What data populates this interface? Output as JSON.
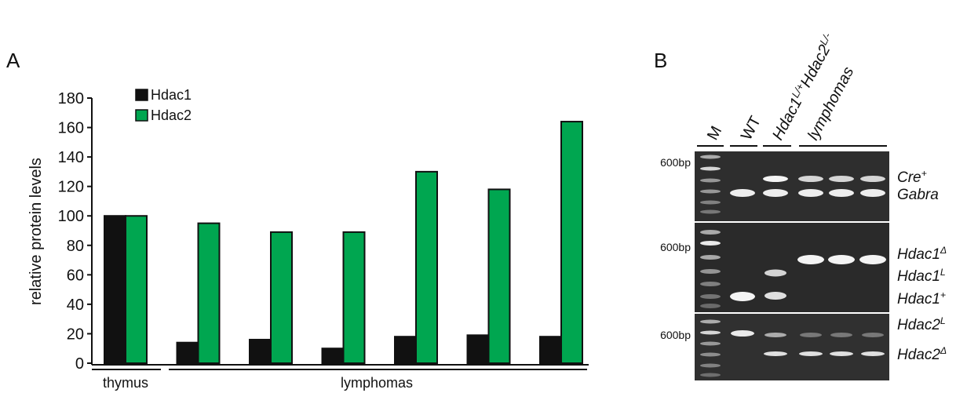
{
  "panel_labels": {
    "a": "A",
    "b": "B"
  },
  "chart_data": {
    "type": "bar",
    "y_label": "relative protein levels",
    "categories": [
      null,
      null,
      null,
      null,
      null,
      null,
      null
    ],
    "x_group_labels": [
      "thymus",
      "lymphomas"
    ],
    "series": [
      {
        "name": "Hdac1",
        "color": "#111111",
        "values": [
          100,
          14,
          16,
          10,
          18,
          19,
          18
        ]
      },
      {
        "name": "Hdac2",
        "color": "#00a650",
        "values": [
          100,
          95,
          89,
          89,
          130,
          118,
          164
        ]
      }
    ],
    "ylim": [
      0,
      180
    ],
    "yticks": [
      0,
      20,
      40,
      60,
      80,
      100,
      120,
      140,
      160,
      180
    ],
    "grid": false
  },
  "gel": {
    "lanes": [
      [
        {
          "text": "M"
        }
      ],
      [
        {
          "text": "WT"
        }
      ],
      [
        {
          "text": "Hdac1"
        },
        {
          "text": "L/+",
          "sup": true
        },
        {
          "text": "Hdac2"
        },
        {
          "text": "L/-",
          "sup": true
        }
      ],
      [
        {
          "text": "lymphomas"
        }
      ]
    ],
    "size_markers": [
      "600bp",
      "600bp",
      "600bp"
    ],
    "band_labels": [
      [
        {
          "text": "Cre"
        },
        {
          "text": "+",
          "sup": true
        }
      ],
      [
        {
          "text": "Gabra"
        }
      ],
      [
        {
          "text": "Hdac1"
        },
        {
          "text": "Δ",
          "sup": true
        }
      ],
      [
        {
          "text": "Hdac1"
        },
        {
          "text": "L",
          "sup": true
        }
      ],
      [
        {
          "text": "Hdac1"
        },
        {
          "text": "+",
          "sup": true
        }
      ],
      [
        {
          "text": "Hdac2"
        },
        {
          "text": "L",
          "sup": true
        }
      ],
      [
        {
          "text": "Hdac2"
        },
        {
          "text": "Δ",
          "sup": true
        }
      ]
    ]
  }
}
